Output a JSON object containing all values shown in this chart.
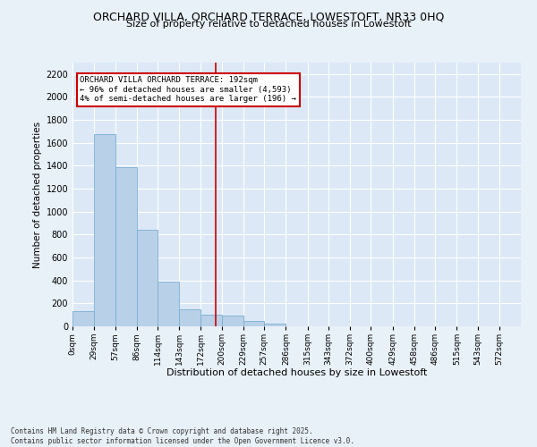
{
  "title_line1": "ORCHARD VILLA, ORCHARD TERRACE, LOWESTOFT, NR33 0HQ",
  "title_line2": "Size of property relative to detached houses in Lowestoft",
  "xlabel": "Distribution of detached houses by size in Lowestoft",
  "ylabel": "Number of detached properties",
  "bar_color": "#b8d0e8",
  "bar_edge_color": "#7aafd4",
  "bg_color": "#dce8f5",
  "fig_bg_color": "#e8f0f8",
  "annotation_text": "ORCHARD VILLA ORCHARD TERRACE: 192sqm\n← 96% of detached houses are smaller (4,593)\n4% of semi-detached houses are larger (196) →",
  "vline_x": 192,
  "vline_color": "#cc0000",
  "categories": [
    "0sqm",
    "29sqm",
    "57sqm",
    "86sqm",
    "114sqm",
    "143sqm",
    "172sqm",
    "200sqm",
    "229sqm",
    "257sqm",
    "286sqm",
    "315sqm",
    "343sqm",
    "372sqm",
    "400sqm",
    "429sqm",
    "458sqm",
    "486sqm",
    "515sqm",
    "543sqm",
    "572sqm"
  ],
  "bin_edges": [
    0,
    29,
    57,
    86,
    114,
    143,
    172,
    200,
    229,
    257,
    286,
    315,
    343,
    372,
    400,
    429,
    458,
    486,
    515,
    543,
    572,
    601
  ],
  "values": [
    130,
    1680,
    1390,
    840,
    390,
    145,
    100,
    90,
    50,
    20,
    0,
    0,
    0,
    0,
    0,
    0,
    0,
    0,
    0,
    0,
    0
  ],
  "ylim": [
    0,
    2300
  ],
  "yticks": [
    0,
    200,
    400,
    600,
    800,
    1000,
    1200,
    1400,
    1600,
    1800,
    2000,
    2200
  ],
  "footer_line1": "Contains HM Land Registry data © Crown copyright and database right 2025.",
  "footer_line2": "Contains public sector information licensed under the Open Government Licence v3.0."
}
